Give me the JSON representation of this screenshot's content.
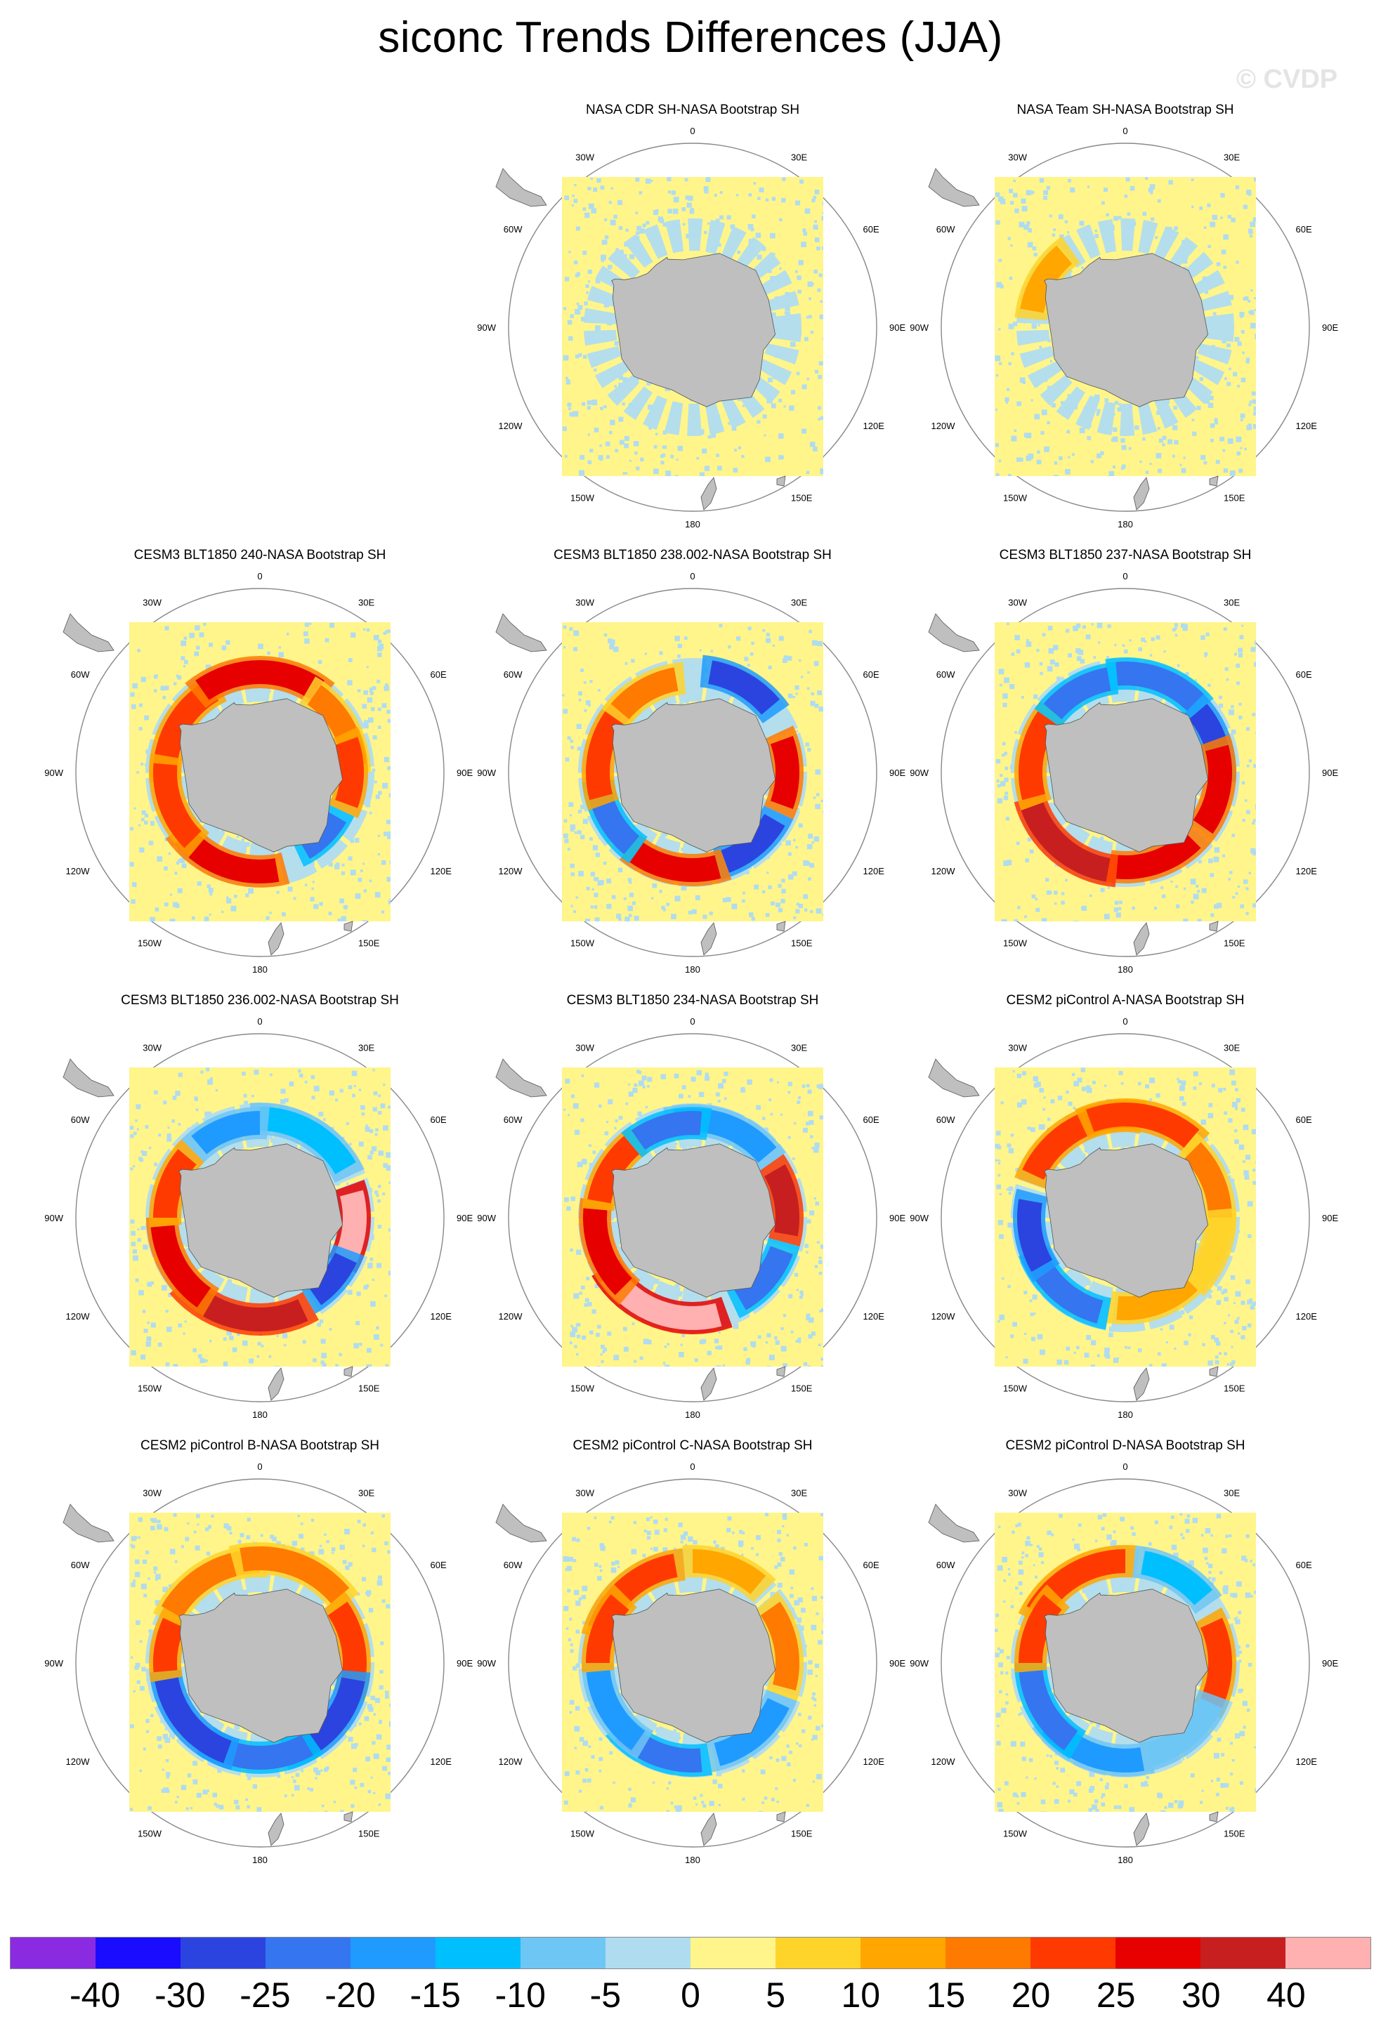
{
  "title": "siconc Trends Differences (JJA)",
  "watermark": "© CVDP",
  "map_labels": {
    "lon_0": "0",
    "lon_30e": "30E",
    "lon_60e": "60E",
    "lon_90e": "90E",
    "lon_120e": "120E",
    "lon_150e": "150E",
    "lon_180": "180",
    "lon_150w": "150W",
    "lon_120w": "120W",
    "lon_90w": "90W",
    "lon_60w": "60W",
    "lon_30w": "30W"
  },
  "panels": [
    {
      "title": "NASA CDR SH-NASA Bootstrap SH",
      "pattern": "light"
    },
    {
      "title": "NASA Team SH-NASA Bootstrap SH",
      "pattern": "team"
    },
    {
      "title": "CESM3 BLT1850 240-NASA Bootstrap SH",
      "pattern": "warm_ring"
    },
    {
      "title": "CESM3 BLT1850 238.002-NASA Bootstrap SH",
      "pattern": "mixed_a"
    },
    {
      "title": "CESM3 BLT1850 237-NASA Bootstrap SH",
      "pattern": "mixed_b"
    },
    {
      "title": "CESM3 BLT1850 236.002-NASA Bootstrap SH",
      "pattern": "mixed_c"
    },
    {
      "title": "CESM3 BLT1850 234-NASA Bootstrap SH",
      "pattern": "mixed_d"
    },
    {
      "title": "CESM2 piControl A-NASA Bootstrap SH",
      "pattern": "mixed_e"
    },
    {
      "title": "CESM2 piControl B-NASA Bootstrap SH",
      "pattern": "cool_ring"
    },
    {
      "title": "CESM2 piControl C-NASA Bootstrap SH",
      "pattern": "mixed_f"
    },
    {
      "title": "CESM2 piControl D-NASA Bootstrap SH",
      "pattern": "mixed_g"
    }
  ],
  "colorbar": {
    "colors": [
      "#8a2be2",
      "#1a0dff",
      "#2b44e0",
      "#3575f0",
      "#1f9bff",
      "#00bfff",
      "#6ec6f5",
      "#b0dcf0",
      "#fff58a",
      "#ffd42a",
      "#ffa600",
      "#ff7a00",
      "#ff3a00",
      "#e60000",
      "#c71f1f",
      "#ffb0b0"
    ],
    "labels": [
      "-40",
      "-30",
      "-25",
      "-20",
      "-15",
      "-10",
      "-5",
      "0",
      "5",
      "10",
      "15",
      "20",
      "25",
      "30",
      "40"
    ]
  }
}
